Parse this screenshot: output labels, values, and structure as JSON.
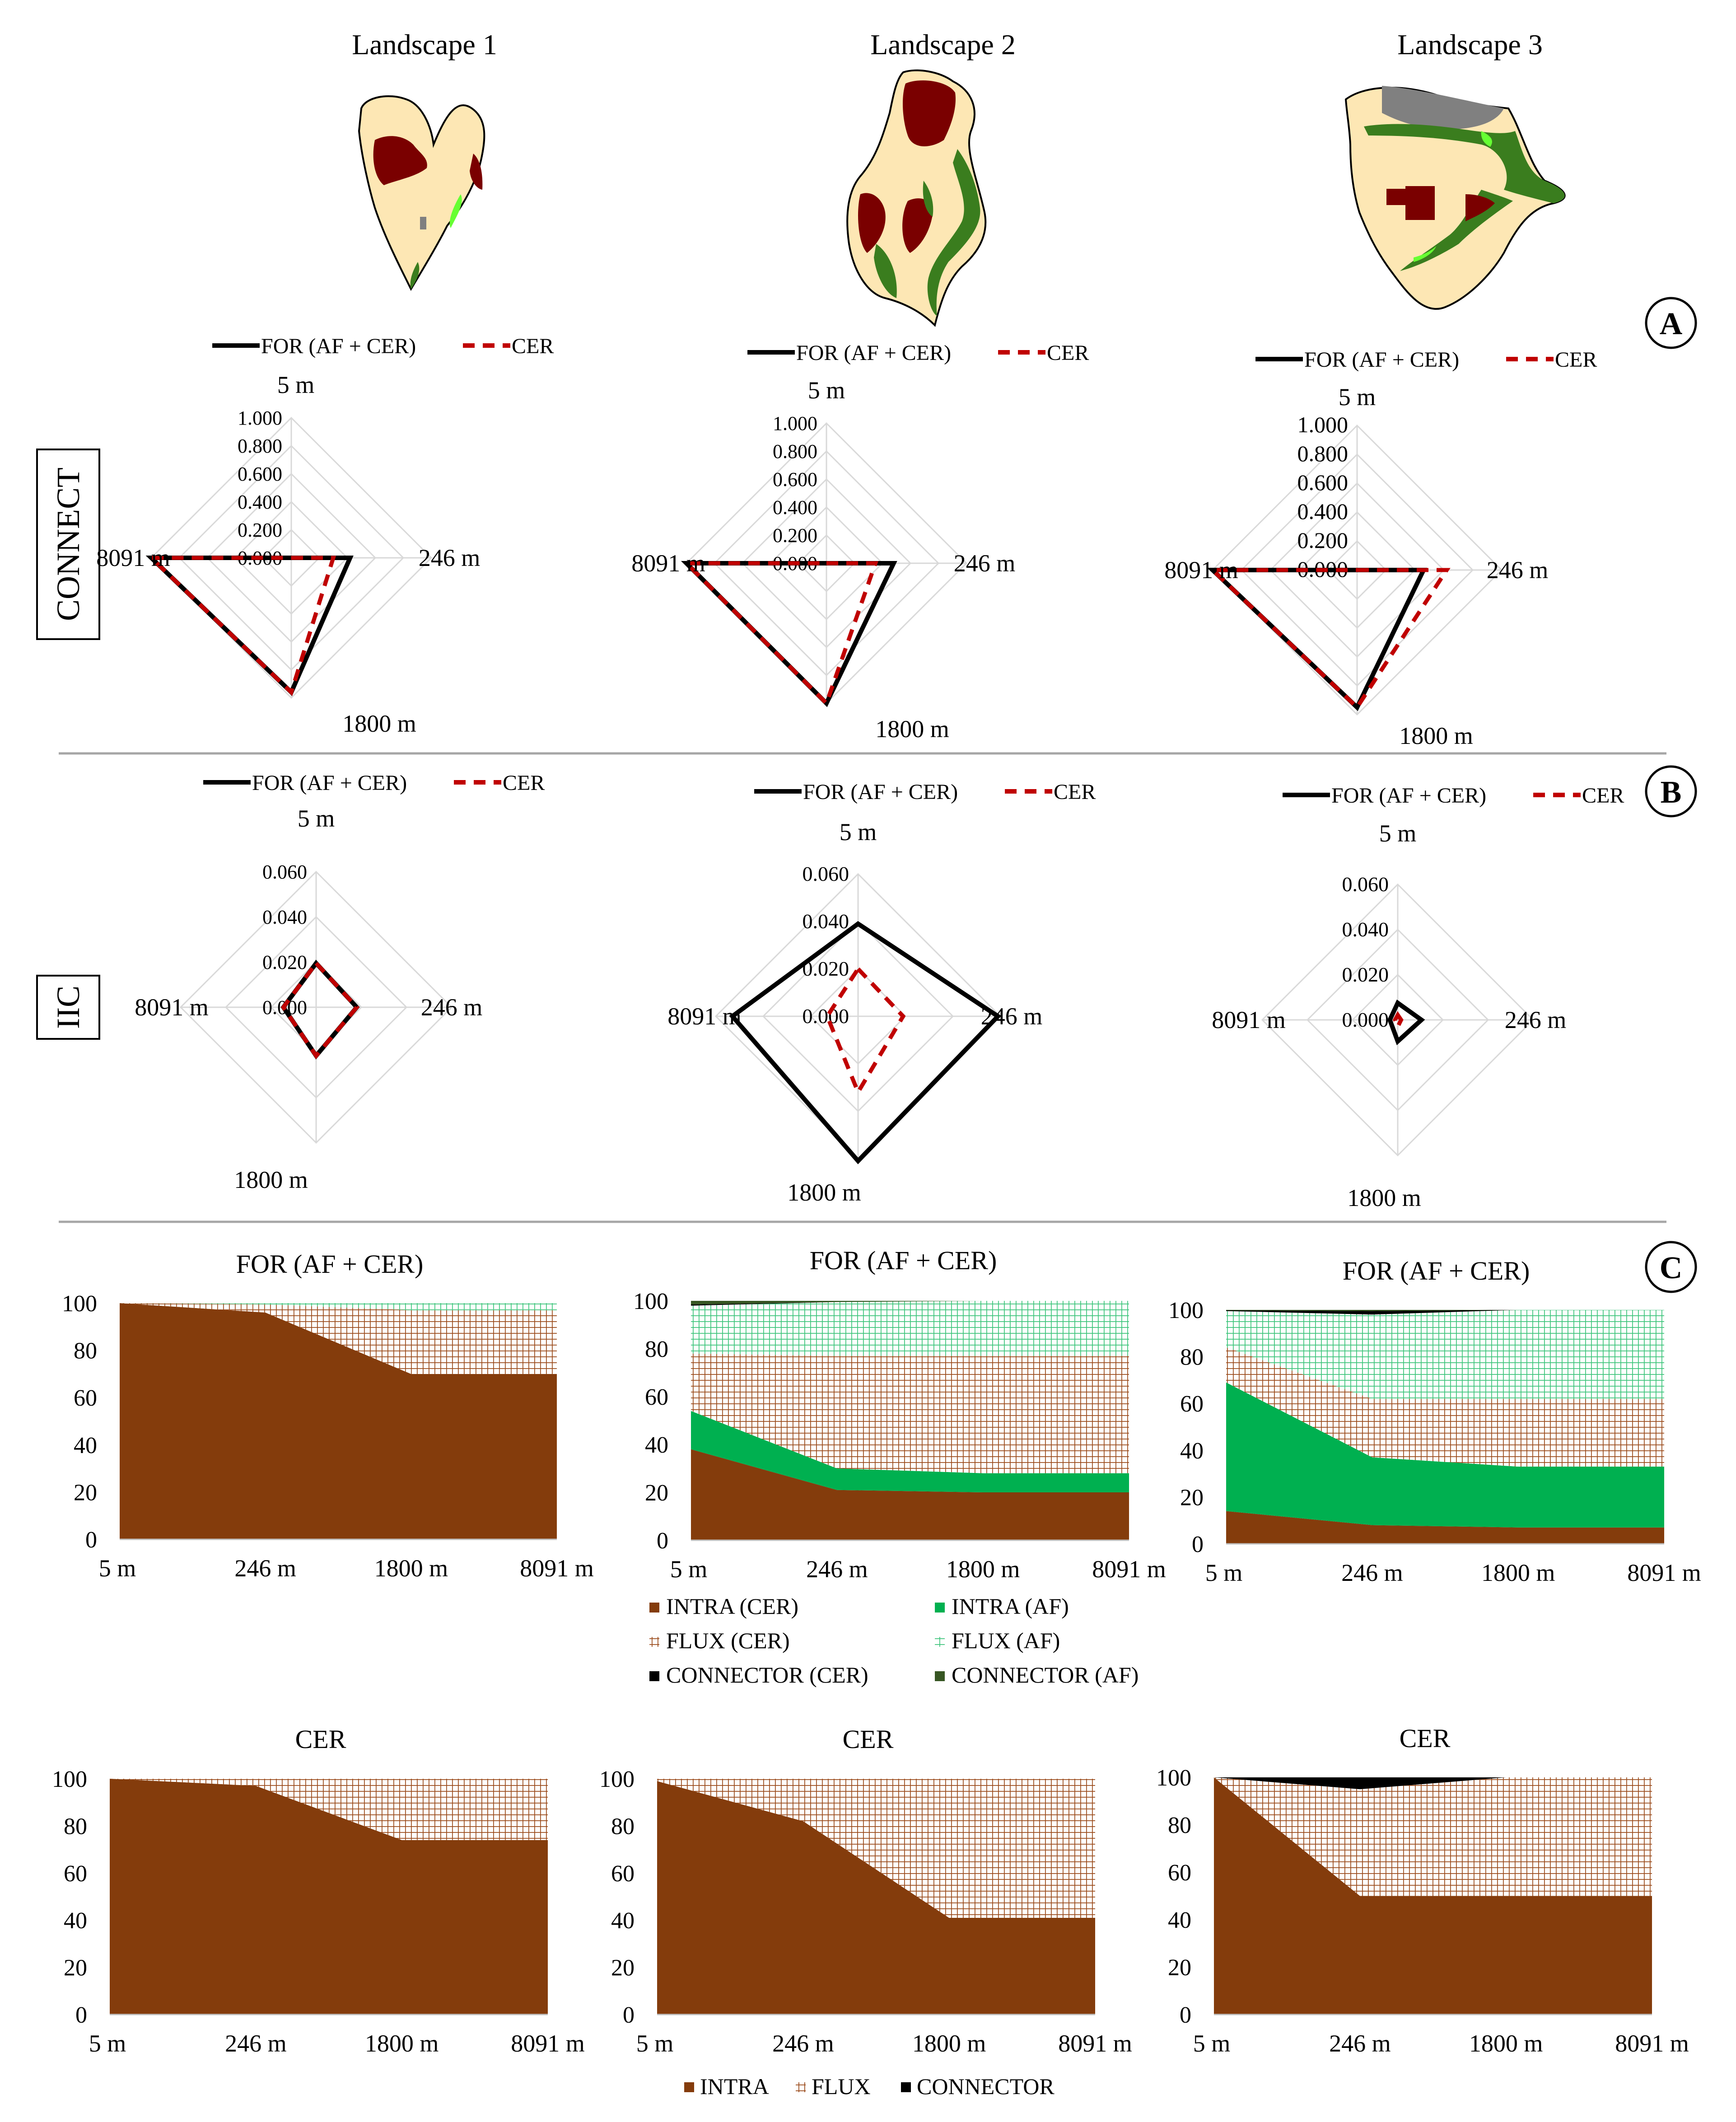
{
  "landscapes": [
    {
      "title": "Landscape 1"
    },
    {
      "title": "Landscape 2"
    },
    {
      "title": "Landscape 3"
    }
  ],
  "panel_labels": {
    "a": "A",
    "b": "B",
    "c": "C"
  },
  "row_labels": {
    "connect": "CONNECT",
    "iic": "IIC"
  },
  "radar_legend": {
    "for_label": "FOR (AF + CER)",
    "cer_label": "CER"
  },
  "area_legend_mixed": {
    "items": [
      "INTRA (CER)",
      "INTRA (AF)",
      "FLUX (CER)",
      "FLUX (AF)",
      "CONNECTOR (CER)",
      "CONNECTOR (AF)"
    ]
  },
  "area_legend_cer": {
    "items": [
      "INTRA",
      "FLUX",
      "CONNECTOR"
    ]
  },
  "colors": {
    "for_line": "#000000",
    "cer_line": "#c00000",
    "intra_cer": "#843c0c",
    "intra_af": "#00b050",
    "flux_cer": "#843c0c",
    "flux_af": "#00b050",
    "connector_cer": "#000000",
    "connector_af": "#375623",
    "map_matrix": "#fde7b4",
    "map_cer": "#7a0000",
    "map_forest": "#3a7d1e",
    "map_light": "#66ff33",
    "map_urban": "#808080"
  },
  "chart_data": [
    {
      "id": "connect-l1",
      "type": "radar",
      "legend": [
        "FOR (AF + CER)",
        "CER"
      ],
      "axes": [
        "5 m",
        "246 m",
        "1800 m",
        "8091 m"
      ],
      "ticks": [
        "0.000",
        "0.200",
        "0.400",
        "0.600",
        "0.800",
        "1.000"
      ],
      "range": [
        0,
        1
      ],
      "series": [
        {
          "name": "FOR (AF + CER)",
          "values": [
            0,
            0.42,
            0.96,
            1.0
          ]
        },
        {
          "name": "CER",
          "values": [
            0,
            0.3,
            0.96,
            1.0
          ]
        }
      ]
    },
    {
      "id": "connect-l2",
      "type": "radar",
      "legend": [
        "FOR (AF + CER)",
        "CER"
      ],
      "axes": [
        "5 m",
        "246 m",
        "1800 m",
        "8091 m"
      ],
      "ticks": [
        "0.000",
        "0.200",
        "0.400",
        "0.600",
        "0.800",
        "1.000"
      ],
      "range": [
        0,
        1
      ],
      "series": [
        {
          "name": "FOR (AF + CER)",
          "values": [
            0,
            0.48,
            1.0,
            1.0
          ]
        },
        {
          "name": "CER",
          "values": [
            0,
            0.35,
            1.0,
            1.0
          ]
        }
      ]
    },
    {
      "id": "connect-l3",
      "type": "radar",
      "legend": [
        "FOR (AF + CER)",
        "CER"
      ],
      "axes": [
        "5 m",
        "246 m",
        "1800 m",
        "8091 m"
      ],
      "ticks": [
        "0.000",
        "0.200",
        "0.400",
        "0.600",
        "0.800",
        "1.000"
      ],
      "range": [
        0,
        1
      ],
      "series": [
        {
          "name": "FOR (AF + CER)",
          "values": [
            0,
            0.46,
            0.95,
            1.0
          ]
        },
        {
          "name": "CER",
          "values": [
            0,
            0.62,
            0.95,
            1.0
          ]
        }
      ]
    },
    {
      "id": "iic-l1",
      "type": "radar",
      "legend": [
        "FOR (AF + CER)",
        "CER"
      ],
      "axes": [
        "5 m",
        "246 m",
        "1800 m",
        "8091 m"
      ],
      "ticks": [
        "0.000",
        "0.020",
        "0.040",
        "0.060"
      ],
      "range": [
        0,
        0.06
      ],
      "series": [
        {
          "name": "FOR (AF + CER)",
          "values": [
            0.0195,
            0.018,
            0.0215,
            0.0145
          ]
        },
        {
          "name": "CER",
          "values": [
            0.0195,
            0.018,
            0.0215,
            0.0145
          ]
        }
      ]
    },
    {
      "id": "iic-l2",
      "type": "radar",
      "legend": [
        "FOR (AF + CER)",
        "CER"
      ],
      "axes": [
        "5 m",
        "246 m",
        "1800 m",
        "8091 m"
      ],
      "ticks": [
        "0.000",
        "0.020",
        "0.040",
        "0.060"
      ],
      "range": [
        0,
        0.06
      ],
      "series": [
        {
          "name": "FOR (AF + CER)",
          "values": [
            0.039,
            0.059,
            0.061,
            0.053
          ]
        },
        {
          "name": "CER",
          "values": [
            0.02,
            0.019,
            0.032,
            0.013
          ]
        }
      ]
    },
    {
      "id": "iic-l3",
      "type": "radar",
      "legend": [
        "FOR (AF + CER)",
        "CER"
      ],
      "axes": [
        "5 m",
        "246 m",
        "1800 m",
        "8091 m"
      ],
      "ticks": [
        "0.000",
        "0.020",
        "0.040",
        "0.060"
      ],
      "range": [
        0,
        0.06
      ],
      "series": [
        {
          "name": "FOR (AF + CER)",
          "values": [
            0.0075,
            0.0105,
            0.0095,
            0.0035
          ]
        },
        {
          "name": "CER",
          "values": [
            0.0022,
            0.0015,
            0.003,
            0.0012
          ]
        }
      ]
    },
    {
      "id": "area-for-l1",
      "type": "area",
      "stacked": true,
      "title": "FOR (AF + CER)",
      "categories": [
        "5 m",
        "246 m",
        "1800 m",
        "8091 m"
      ],
      "yticks": [
        "0",
        "20",
        "40",
        "60",
        "80",
        "100"
      ],
      "ylim": [
        0,
        100
      ],
      "series": [
        {
          "name": "INTRA (CER)",
          "values": [
            100,
            96,
            70,
            70
          ]
        },
        {
          "name": "INTRA (AF)",
          "values": [
            0,
            0,
            0,
            0
          ]
        },
        {
          "name": "FLUX (CER)",
          "values": [
            0,
            3.5,
            27,
            27
          ]
        },
        {
          "name": "FLUX (AF)",
          "values": [
            0,
            0.5,
            3,
            3
          ]
        },
        {
          "name": "CONNECTOR (CER)",
          "values": [
            0,
            0,
            0,
            0
          ]
        },
        {
          "name": "CONNECTOR (AF)",
          "values": [
            0,
            0,
            0,
            0
          ]
        }
      ]
    },
    {
      "id": "area-for-l2",
      "type": "area",
      "stacked": true,
      "title": "FOR (AF + CER)",
      "categories": [
        "5 m",
        "246 m",
        "1800 m",
        "8091 m"
      ],
      "yticks": [
        "0",
        "20",
        "40",
        "60",
        "80",
        "100"
      ],
      "ylim": [
        0,
        100
      ],
      "series": [
        {
          "name": "INTRA (CER)",
          "values": [
            38,
            21,
            20,
            20
          ]
        },
        {
          "name": "INTRA (AF)",
          "values": [
            16,
            9,
            8,
            8
          ]
        },
        {
          "name": "FLUX (CER)",
          "values": [
            24,
            47,
            49,
            49
          ]
        },
        {
          "name": "FLUX (AF)",
          "values": [
            20,
            22.5,
            23,
            23
          ]
        },
        {
          "name": "CONNECTOR (CER)",
          "values": [
            0.5,
            0,
            0,
            0
          ]
        },
        {
          "name": "CONNECTOR (AF)",
          "values": [
            1.5,
            0.5,
            0,
            0
          ]
        }
      ]
    },
    {
      "id": "area-for-l3",
      "type": "area",
      "stacked": true,
      "title": "FOR (AF + CER)",
      "categories": [
        "5 m",
        "246 m",
        "1800 m",
        "8091 m"
      ],
      "yticks": [
        "0",
        "20",
        "40",
        "60",
        "80",
        "100"
      ],
      "ylim": [
        0,
        100
      ],
      "series": [
        {
          "name": "INTRA (CER)",
          "values": [
            14,
            8,
            7,
            7
          ]
        },
        {
          "name": "INTRA (AF)",
          "values": [
            55,
            29,
            26,
            26
          ]
        },
        {
          "name": "FLUX (CER)",
          "values": [
            15,
            25,
            29,
            29
          ]
        },
        {
          "name": "FLUX (AF)",
          "values": [
            15.5,
            36,
            38,
            38
          ]
        },
        {
          "name": "CONNECTOR (CER)",
          "values": [
            0.3,
            1.5,
            0,
            0
          ]
        },
        {
          "name": "CONNECTOR (AF)",
          "values": [
            0.2,
            0.5,
            0,
            0
          ]
        }
      ]
    },
    {
      "id": "area-cer-l1",
      "type": "area",
      "stacked": true,
      "title": "CER",
      "categories": [
        "5 m",
        "246 m",
        "1800 m",
        "8091 m"
      ],
      "yticks": [
        "0",
        "20",
        "40",
        "60",
        "80",
        "100"
      ],
      "ylim": [
        0,
        100
      ],
      "series": [
        {
          "name": "INTRA",
          "values": [
            100,
            97,
            74,
            74
          ]
        },
        {
          "name": "FLUX",
          "values": [
            0,
            3,
            26,
            26
          ]
        },
        {
          "name": "CONNECTOR",
          "values": [
            0,
            0,
            0,
            0
          ]
        }
      ]
    },
    {
      "id": "area-cer-l2",
      "type": "area",
      "stacked": true,
      "title": "CER",
      "categories": [
        "5 m",
        "246 m",
        "1800 m",
        "8091 m"
      ],
      "yticks": [
        "0",
        "20",
        "40",
        "60",
        "80",
        "100"
      ],
      "ylim": [
        0,
        100
      ],
      "series": [
        {
          "name": "INTRA",
          "values": [
            99,
            82,
            41,
            41
          ]
        },
        {
          "name": "FLUX",
          "values": [
            1,
            18,
            59,
            59
          ]
        },
        {
          "name": "CONNECTOR",
          "values": [
            0,
            0,
            0,
            0
          ]
        }
      ]
    },
    {
      "id": "area-cer-l3",
      "type": "area",
      "stacked": true,
      "title": "CER",
      "categories": [
        "5 m",
        "246 m",
        "1800 m",
        "8091 m"
      ],
      "yticks": [
        "0",
        "20",
        "40",
        "60",
        "80",
        "100"
      ],
      "ylim": [
        0,
        100
      ],
      "series": [
        {
          "name": "INTRA",
          "values": [
            100,
            50,
            50,
            50
          ]
        },
        {
          "name": "FLUX",
          "values": [
            0,
            45,
            50,
            50
          ]
        },
        {
          "name": "CONNECTOR",
          "values": [
            0,
            5,
            0,
            0
          ]
        }
      ]
    }
  ]
}
